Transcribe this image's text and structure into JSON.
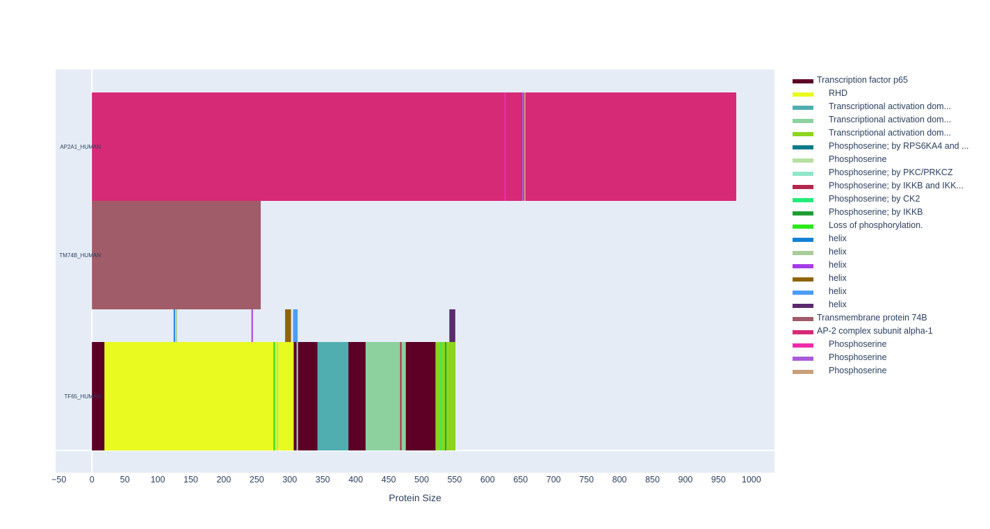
{
  "chart_data": {
    "type": "bar",
    "orientation": "horizontal",
    "xlabel": "Protein Size",
    "ylabel": "",
    "title": "",
    "xlim": [
      -55,
      1035
    ],
    "x_ticks": [
      -50,
      0,
      50,
      100,
      150,
      200,
      250,
      300,
      350,
      400,
      450,
      500,
      550,
      600,
      650,
      700,
      750,
      800,
      850,
      900,
      950,
      1000
    ],
    "grid": true,
    "legend_placement": "right",
    "background": "#e5ecf6",
    "categories": [
      "AP2A1_HUMAN",
      "TM74B_HUMAN",
      "TF65_HUMAN"
    ],
    "proteins": [
      {
        "label": "AP2A1_HUMAN",
        "length": 977,
        "color": "#d62976"
      },
      {
        "label": "TM74B_HUMAN",
        "length": 256,
        "color": "#a05c68"
      },
      {
        "label": "TF65_HUMAN",
        "length": 551,
        "color": "#5c0026"
      }
    ],
    "features": [
      {
        "protein": "TF65_HUMAN",
        "name": "RHD",
        "start": 19,
        "end": 306,
        "color": "#e8fa20",
        "kind": "domain"
      },
      {
        "protein": "TF65_HUMAN",
        "name": "Transcriptional activation dom...",
        "start": 342,
        "end": 389,
        "color": "#51aeb0",
        "kind": "domain"
      },
      {
        "protein": "TF65_HUMAN",
        "name": "Transcriptional activation dom...",
        "start": 415,
        "end": 476,
        "color": "#8dd19f",
        "kind": "domain"
      },
      {
        "protein": "TF65_HUMAN",
        "name": "Transcriptional activation dom...",
        "start": 521,
        "end": 551,
        "color": "#8bd61c",
        "kind": "domain"
      },
      {
        "protein": "TF65_HUMAN",
        "name": "Phosphoserine; by RPS6KA4 and ...",
        "start": 276,
        "end": 276,
        "color": "#0d7a88",
        "kind": "site"
      },
      {
        "protein": "TF65_HUMAN",
        "name": "Phosphoserine",
        "start": 281,
        "end": 281,
        "color": "#b7e0a0",
        "kind": "site"
      },
      {
        "protein": "TF65_HUMAN",
        "name": "Phosphoserine; by PKC/PRKCZ",
        "start": 311,
        "end": 311,
        "color": "#8fe6c8",
        "kind": "site"
      },
      {
        "protein": "TF65_HUMAN",
        "name": "Phosphoserine; by IKKB and IKK...",
        "start": 468,
        "end": 468,
        "color": "#b5264c",
        "kind": "site"
      },
      {
        "protein": "TF65_HUMAN",
        "name": "Phosphoserine; by CK2",
        "start": 529,
        "end": 529,
        "color": "#23ec7a",
        "kind": "site"
      },
      {
        "protein": "TF65_HUMAN",
        "name": "Phosphoserine; by IKKB",
        "start": 536,
        "end": 536,
        "color": "#1f9e34",
        "kind": "site"
      },
      {
        "protein": "TF65_HUMAN",
        "name": "Loss of phosphorylation.",
        "start": 276,
        "end": 276,
        "color": "#2ee81a",
        "kind": "site"
      },
      {
        "protein": "TF65_HUMAN",
        "name": "helix",
        "start": 124,
        "end": 126,
        "color": "#1581d6",
        "kind": "structure"
      },
      {
        "protein": "TF65_HUMAN",
        "name": "helix",
        "start": 127,
        "end": 129,
        "color": "#a8cc98",
        "kind": "structure"
      },
      {
        "protein": "TF65_HUMAN",
        "name": "helix",
        "start": 242,
        "end": 244,
        "color": "#a63be8",
        "kind": "structure"
      },
      {
        "protein": "TF65_HUMAN",
        "name": "helix",
        "start": 293,
        "end": 302,
        "color": "#90640c",
        "kind": "structure"
      },
      {
        "protein": "TF65_HUMAN",
        "name": "helix",
        "start": 305,
        "end": 312,
        "color": "#4c9cf6",
        "kind": "structure"
      },
      {
        "protein": "TF65_HUMAN",
        "name": "helix",
        "start": 542,
        "end": 551,
        "color": "#5a2a6e",
        "kind": "structure"
      },
      {
        "protein": "AP2A1_HUMAN",
        "name": "Phosphoserine",
        "start": 626,
        "end": 626,
        "color": "#f02bab",
        "kind": "site"
      },
      {
        "protein": "AP2A1_HUMAN",
        "name": "Phosphoserine",
        "start": 653,
        "end": 653,
        "color": "#a95bdc",
        "kind": "site"
      },
      {
        "protein": "AP2A1_HUMAN",
        "name": "Phosphoserine",
        "start": 656,
        "end": 656,
        "color": "#c8a07c",
        "kind": "site"
      }
    ],
    "legend": [
      {
        "label": "Transcription factor p65",
        "color": "#5c0026",
        "indent": false
      },
      {
        "label": "RHD",
        "color": "#e8fa20",
        "indent": true
      },
      {
        "label": "Transcriptional activation dom...",
        "color": "#51aeb0",
        "indent": true
      },
      {
        "label": "Transcriptional activation dom...",
        "color": "#8dd19f",
        "indent": true
      },
      {
        "label": "Transcriptional activation dom...",
        "color": "#8bd61c",
        "indent": true
      },
      {
        "label": "Phosphoserine; by RPS6KA4 and ...",
        "color": "#0d7a88",
        "indent": true
      },
      {
        "label": "Phosphoserine",
        "color": "#b7e0a0",
        "indent": true
      },
      {
        "label": "Phosphoserine; by PKC/PRKCZ",
        "color": "#8fe6c8",
        "indent": true
      },
      {
        "label": "Phosphoserine; by IKKB and IKK...",
        "color": "#b5264c",
        "indent": true
      },
      {
        "label": "Phosphoserine; by CK2",
        "color": "#23ec7a",
        "indent": true
      },
      {
        "label": "Phosphoserine; by IKKB",
        "color": "#1f9e34",
        "indent": true
      },
      {
        "label": "Loss of phosphorylation.",
        "color": "#2ee81a",
        "indent": true
      },
      {
        "label": "helix",
        "color": "#1581d6",
        "indent": true
      },
      {
        "label": "helix",
        "color": "#a8cc98",
        "indent": true
      },
      {
        "label": "helix",
        "color": "#a63be8",
        "indent": true
      },
      {
        "label": "helix",
        "color": "#90640c",
        "indent": true
      },
      {
        "label": "helix",
        "color": "#4c9cf6",
        "indent": true
      },
      {
        "label": "helix",
        "color": "#5a2a6e",
        "indent": true
      },
      {
        "label": "Transmembrane protein 74B",
        "color": "#a05c68",
        "indent": false
      },
      {
        "label": "AP-2 complex subunit alpha-1",
        "color": "#d62976",
        "indent": false
      },
      {
        "label": "Phosphoserine",
        "color": "#f02bab",
        "indent": true
      },
      {
        "label": "Phosphoserine",
        "color": "#a95bdc",
        "indent": true
      },
      {
        "label": "Phosphoserine",
        "color": "#c8a07c",
        "indent": true
      }
    ]
  }
}
